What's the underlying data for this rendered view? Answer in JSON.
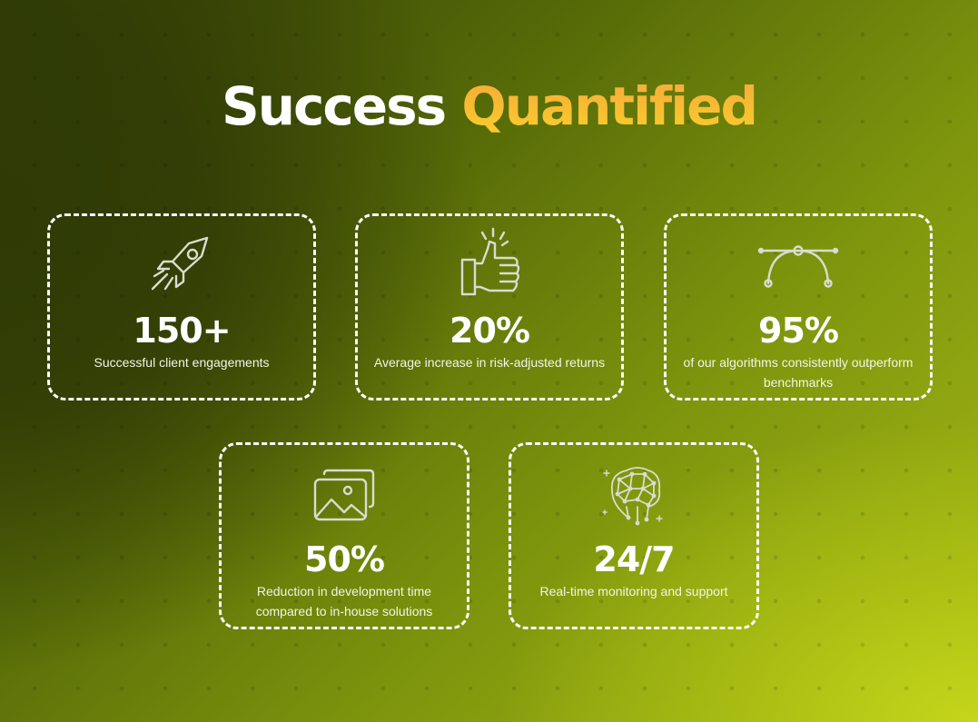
{
  "title": {
    "part1": "Success",
    "part2": "Quantified"
  },
  "stats": [
    {
      "icon": "rocket-icon",
      "value": "150+",
      "label": "Successful client engagements"
    },
    {
      "icon": "thumbs-up-icon",
      "value": "20%",
      "label": "Average increase in risk-adjusted returns"
    },
    {
      "icon": "bezier-curve-icon",
      "value": "95%",
      "label": "of our algorithms consistently outperform benchmarks"
    },
    {
      "icon": "image-gallery-icon",
      "value": "50%",
      "label": "Reduction in development time compared to in-house solutions"
    },
    {
      "icon": "neural-network-brain-icon",
      "value": "24/7",
      "label": "Real-time monitoring and support"
    }
  ],
  "colors": {
    "accent_start": "#f6a83c",
    "accent_end": "#f9cf2a",
    "text": "#ffffff"
  }
}
